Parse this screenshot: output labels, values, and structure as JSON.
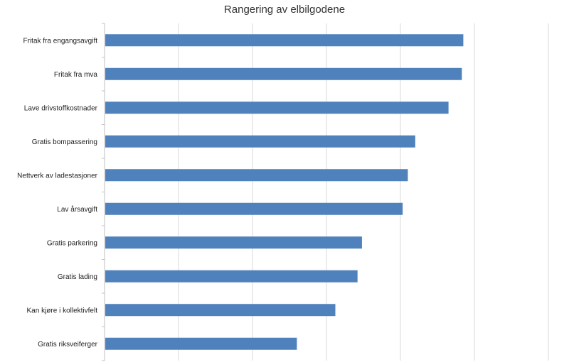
{
  "chart_data": {
    "type": "bar",
    "orientation": "horizontal",
    "title": "Rangering av elbilgodene",
    "xlabel": "",
    "ylabel": "",
    "categories": [
      "Fritak fra engangsavgift",
      "Fritak fra mva",
      "Lave drivstoffkostnader",
      "Gratis bompassering",
      "Nettverk av ladestasjoner",
      "Lav årsavgift",
      "Gratis parkering",
      "Gratis lading",
      "Kan kjøre i kollektivfelt",
      "Gratis riksveiferger"
    ],
    "values": [
      4.85,
      4.83,
      4.65,
      4.2,
      4.1,
      4.03,
      3.48,
      3.42,
      3.12,
      2.6
    ],
    "xlim": [
      0,
      6
    ],
    "grid": true,
    "legend": "none",
    "tick_labels_visible": false,
    "bar_color": "#4f81bd",
    "grid_color": "#d9d9d9"
  }
}
